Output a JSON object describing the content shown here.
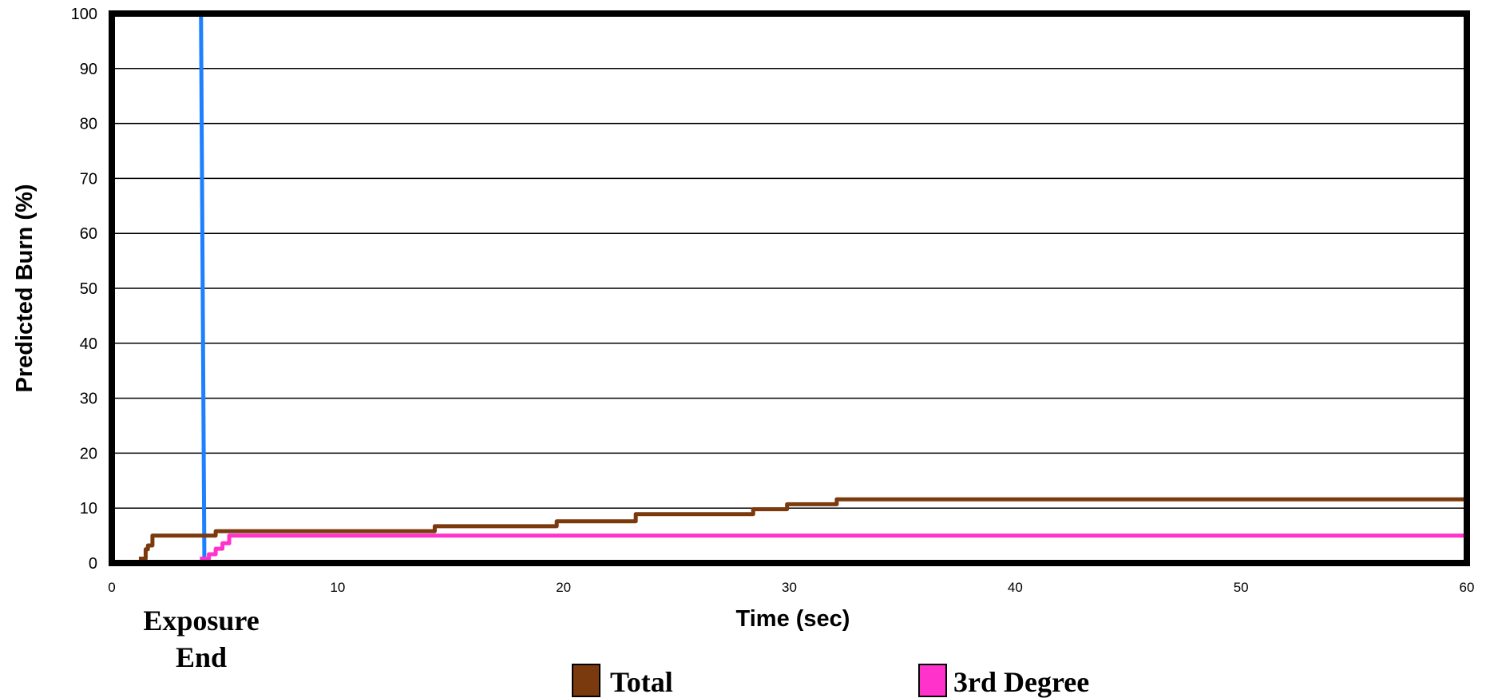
{
  "chart_data": {
    "type": "line",
    "xlabel": "Time (sec)",
    "ylabel": "Predicted Burn (%)",
    "xlim": [
      0,
      60
    ],
    "ylim": [
      0,
      100
    ],
    "x_ticks": [
      0,
      10,
      20,
      30,
      40,
      50,
      60
    ],
    "y_ticks": [
      0,
      10,
      20,
      30,
      40,
      50,
      60,
      70,
      80,
      90,
      100
    ],
    "grid": "horizontal",
    "legend_position": "bottom",
    "series": [
      {
        "name": "Total",
        "color": "#7B3A0E",
        "step": true,
        "x": [
          1.2,
          1.5,
          1.6,
          1.8,
          4.6,
          14.3,
          19.7,
          23.2,
          28.4,
          29.9,
          32.1,
          60
        ],
        "y": [
          0.8,
          2.5,
          3.2,
          5.0,
          5.8,
          6.7,
          7.6,
          8.9,
          9.8,
          10.7,
          11.6,
          11.6
        ]
      },
      {
        "name": "3rd Degree",
        "color": "#FF33CC",
        "step": true,
        "x": [
          3.9,
          4.3,
          4.6,
          4.9,
          5.2,
          60
        ],
        "y": [
          0.8,
          1.6,
          2.6,
          3.6,
          5.0,
          5.0
        ]
      }
    ],
    "annotations": [
      {
        "label": "Exposure End",
        "line1": "Exposure",
        "line2": "End",
        "color": "#1E7FFF",
        "x_top": 3.95,
        "x_bottom": 4.1,
        "y_top": 100,
        "y_bottom": 0
      }
    ]
  }
}
